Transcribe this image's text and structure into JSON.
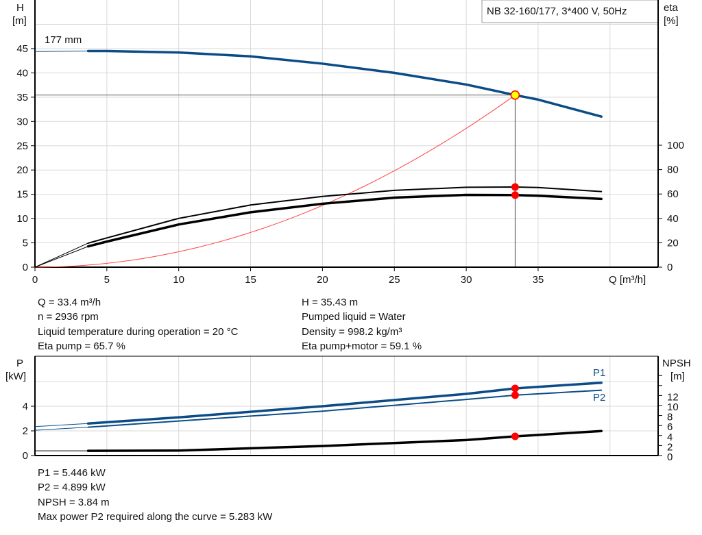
{
  "chart_data": [
    {
      "type": "line",
      "title": "NB 32-160/177, 3*400 V, 50Hz",
      "xlabel": "Q [m³/h]",
      "ylabel": "H [m]",
      "y2label": "eta [%]",
      "xlim": [
        0,
        43
      ],
      "ylim": [
        0,
        55
      ],
      "y2lim": [
        0,
        220
      ],
      "xticks": [
        "0",
        "5",
        "10",
        "15",
        "20",
        "25",
        "30",
        "35"
      ],
      "yticks": [
        "0",
        "5",
        "10",
        "15",
        "20",
        "25",
        "30",
        "35",
        "40",
        "45"
      ],
      "y2ticks": [
        "0",
        "20",
        "40",
        "60",
        "80",
        "100"
      ],
      "impeller_label": "177 mm",
      "grid": true,
      "series": [
        {
          "id": "H",
          "color": "#0b4c87",
          "x": [
            0,
            3.7,
            5,
            10,
            15,
            20,
            25,
            30,
            33.4,
            35,
            39.4
          ],
          "y": [
            44.4,
            44.5,
            44.5,
            44.2,
            43.4,
            41.9,
            40,
            37.6,
            35.43,
            34.5,
            31.0
          ]
        },
        {
          "id": "eta_pump",
          "axis": "y2",
          "color": "#000000",
          "x": [
            0,
            3.7,
            5,
            10,
            15,
            20,
            25,
            30,
            33.4,
            35,
            39.4
          ],
          "y": [
            0,
            19.7,
            24,
            40,
            51,
            58,
            63,
            65.5,
            65.7,
            65.3,
            62
          ]
        },
        {
          "id": "eta_pump_motor",
          "axis": "y2",
          "color": "#000000",
          "x": [
            0,
            3.7,
            5,
            10,
            15,
            20,
            25,
            30,
            33.4,
            35,
            39.4
          ],
          "y": [
            0,
            17,
            21,
            35,
            45,
            52,
            57,
            59.3,
            59.1,
            58.6,
            56
          ]
        }
      ],
      "system_curve": {
        "color": "#ff4040",
        "k": 0.03176
      },
      "duty_point": {
        "Q": 33.4,
        "H": 35.43,
        "eta_pump": 65.7,
        "eta_pump_motor": 59.1
      }
    },
    {
      "type": "line",
      "ylabel": "P [kW]",
      "y2label": "NPSH [m]",
      "xlim": [
        0,
        43
      ],
      "ylim": [
        0,
        6
      ],
      "y2lim": [
        0,
        14
      ],
      "yticks": [
        "0",
        "2",
        "4"
      ],
      "y2ticks": [
        "0",
        "2",
        "4",
        "6",
        "8",
        "10",
        "12"
      ],
      "series": [
        {
          "name": "P1",
          "color": "#0b4c87",
          "x": [
            0,
            3.7,
            10,
            20,
            30,
            33.4,
            39.4
          ],
          "y": [
            2.35,
            2.6,
            3.1,
            4.0,
            5.0,
            5.446,
            5.9
          ]
        },
        {
          "name": "P2",
          "color": "#0b4c87",
          "x": [
            0,
            3.7,
            10,
            20,
            30,
            33.4,
            39.4
          ],
          "y": [
            2.05,
            2.3,
            2.8,
            3.6,
            4.55,
            4.899,
            5.3
          ]
        },
        {
          "id": "NPSH",
          "axis": "y2",
          "color": "#000000",
          "x": [
            0,
            3.7,
            10,
            20,
            30,
            33.4,
            39.4
          ],
          "y": [
            0.95,
            0.95,
            1.0,
            1.9,
            3.1,
            3.84,
            4.9
          ]
        }
      ],
      "duty_point": {
        "Q": 33.4,
        "P1": 5.446,
        "P2": 4.899,
        "NPSH": 3.84
      }
    }
  ],
  "info_top": {
    "left": [
      "Q = 33.4 m³/h",
      "n = 2936 rpm",
      "Liquid temperature during operation = 20 °C",
      "Eta pump = 65.7 %"
    ],
    "right": [
      "H = 35.43 m",
      "Pumped liquid = Water",
      "Density = 998.2 kg/m³",
      "Eta pump+motor = 59.1 %"
    ]
  },
  "info_bottom": [
    "P1 = 5.446 kW",
    "P2 = 4.899 kW",
    "NPSH = 3.84 m",
    "Max power P2 required along the curve = 5.283 kW"
  ]
}
